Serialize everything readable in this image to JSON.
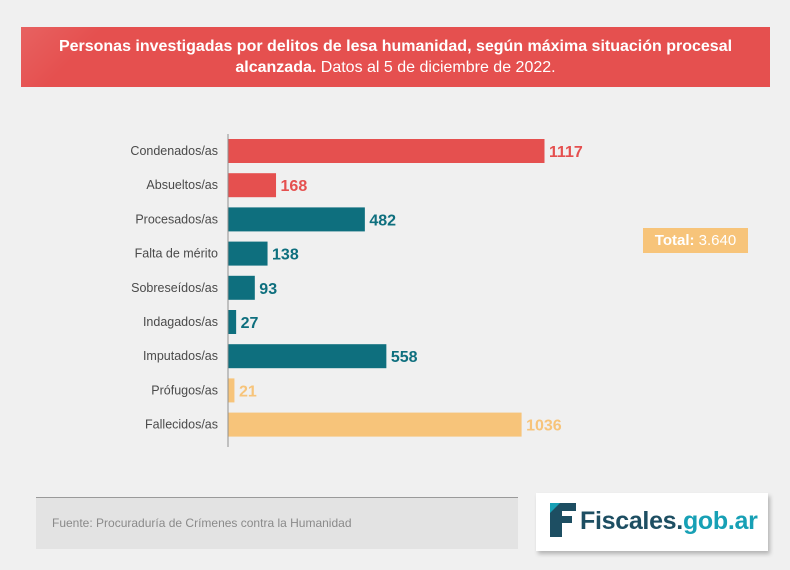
{
  "header": {
    "title_bold": "Personas investigadas por delitos de lesa humanidad, según máxima situación procesal alcanzada.",
    "title_regular": " Datos al 5 de diciembre de 2022."
  },
  "total": {
    "label": "Total:",
    "value": "3.640"
  },
  "source": "Fuente: Procuraduría de Crímenes contra la Humanidad",
  "logo": {
    "text_main": "Fiscales.",
    "text_accent": "gob.ar"
  },
  "colors": {
    "red": "#e5504f",
    "teal": "#0e6f7e",
    "orange": "#f7c47a",
    "logo_dark": "#1d4e62",
    "logo_accent": "#17a0b5"
  },
  "chart_data": {
    "type": "bar",
    "orientation": "horizontal",
    "title": "Personas investigadas por delitos de lesa humanidad, según máxima situación procesal alcanzada. Datos al 5 de diciembre de 2022.",
    "categories": [
      "Condenados/as",
      "Absueltos/as",
      "Procesados/as",
      "Falta de mérito",
      "Sobreseídos/as",
      "Indagados/as",
      "Imputados/as",
      "Prófugos/as",
      "Fallecidos/as"
    ],
    "values": [
      1117,
      168,
      482,
      138,
      93,
      27,
      558,
      21,
      1036
    ],
    "value_labels": [
      "1117",
      "168",
      "482",
      "138",
      "93",
      "27",
      "558",
      "21",
      "1036"
    ],
    "bar_colors": [
      "#e5504f",
      "#e5504f",
      "#0e6f7e",
      "#0e6f7e",
      "#0e6f7e",
      "#0e6f7e",
      "#0e6f7e",
      "#f7c47a",
      "#f7c47a"
    ],
    "xlim": [
      0,
      1117
    ],
    "grid": false,
    "legend": "none"
  }
}
